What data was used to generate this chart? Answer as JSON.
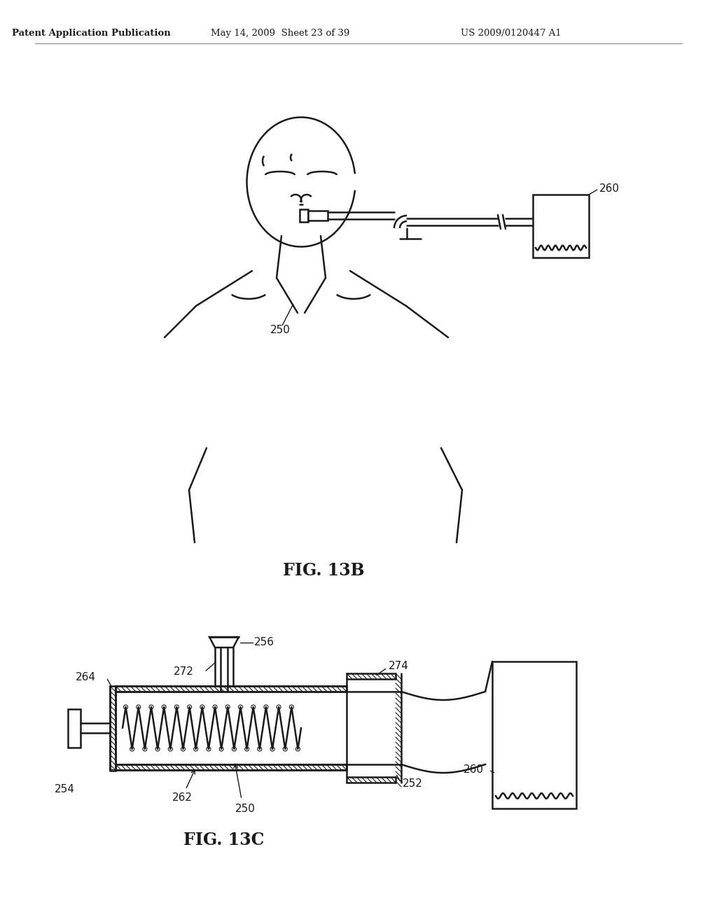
{
  "bg_color": "#ffffff",
  "line_color": "#1a1a1a",
  "header_left": "Patent Application Publication",
  "header_mid": "May 14, 2009  Sheet 23 of 39",
  "header_right": "US 2009/0120447 A1",
  "fig13b_label": "FIG. 13B",
  "fig13c_label": "FIG. 13C",
  "label_250_top": "250",
  "label_260_top": "260",
  "label_250_bot": "250",
  "label_252": "252",
  "label_254": "254",
  "label_256": "256",
  "label_260_bot": "260",
  "label_262": "262",
  "label_264": "264",
  "label_272": "272",
  "label_274": "274"
}
